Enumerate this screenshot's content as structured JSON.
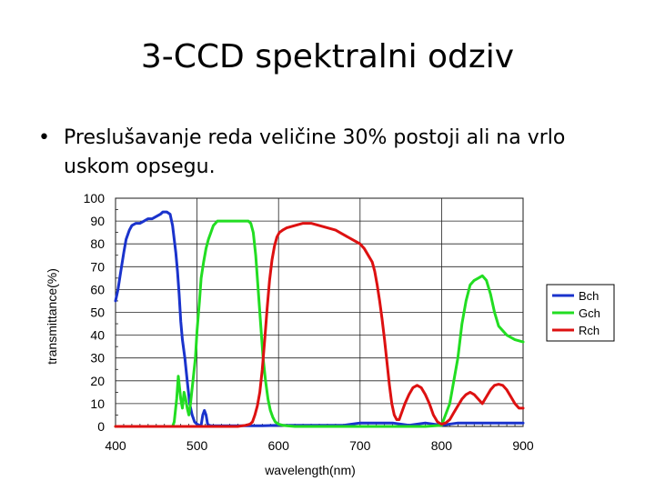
{
  "slide": {
    "title": "3-CCD spektralni odziv",
    "bullet_symbol": "•",
    "bullet_text": "Preslušavanje reda veličine 30% postoji ali na vrlo uskom opsegu."
  },
  "chart_data": {
    "type": "line",
    "xlabel": "wavelength(nm)",
    "ylabel": "transmittance(%)",
    "xlim": [
      400,
      900
    ],
    "ylim": [
      0,
      100
    ],
    "xticks": [
      400,
      500,
      600,
      700,
      800,
      900
    ],
    "yticks": [
      0,
      10,
      20,
      30,
      40,
      50,
      60,
      70,
      80,
      90,
      100
    ],
    "grid": true,
    "legend_position": "right",
    "series": [
      {
        "name": "Bch",
        "color": "#1a33cc",
        "x": [
          400,
          403,
          406,
          410,
          413,
          417,
          420,
          425,
          430,
          435,
          440,
          445,
          450,
          455,
          458,
          460,
          463,
          467,
          470,
          472,
          474,
          476,
          478,
          480,
          482,
          485,
          488,
          491,
          494,
          497,
          500,
          503,
          505,
          507,
          509,
          511,
          513,
          515,
          517,
          520,
          525,
          530,
          540,
          560,
          580,
          600,
          650,
          680,
          700,
          720,
          740,
          760,
          780,
          800,
          820,
          840,
          860,
          880,
          900
        ],
        "values": [
          55,
          60,
          67,
          76,
          82,
          86,
          88,
          89,
          89,
          90,
          91,
          91,
          92,
          93,
          94,
          94,
          94,
          93,
          88,
          82,
          76,
          68,
          58,
          46,
          38,
          30,
          20,
          10,
          5,
          2,
          1,
          0.5,
          0.5,
          5,
          7,
          5,
          1,
          0.5,
          0.3,
          0.3,
          0.3,
          0.3,
          0.3,
          0.3,
          0.3,
          0.5,
          0.5,
          0.5,
          1.5,
          1.5,
          1.5,
          0.5,
          1.5,
          0.5,
          1.5,
          1.5,
          1.5,
          1.5,
          1.5
        ]
      },
      {
        "name": "Gch",
        "color": "#22dd22",
        "x": [
          400,
          440,
          460,
          470,
          472,
          475,
          477,
          480,
          482,
          484,
          486,
          488,
          490,
          492,
          495,
          498,
          500,
          503,
          505,
          508,
          511,
          514,
          517,
          520,
          525,
          530,
          540,
          550,
          560,
          563,
          566,
          569,
          572,
          575,
          578,
          581,
          584,
          587,
          590,
          593,
          596,
          600,
          605,
          610,
          620,
          650,
          700,
          750,
          780,
          800,
          810,
          820,
          825,
          830,
          835,
          840,
          845,
          850,
          855,
          860,
          865,
          870,
          875,
          880,
          890,
          900
        ],
        "values": [
          0,
          0,
          0,
          0,
          2,
          12,
          22,
          12,
          8,
          15,
          12,
          8,
          5,
          10,
          20,
          30,
          42,
          55,
          65,
          72,
          78,
          82,
          85,
          88,
          90,
          90,
          90,
          90,
          90,
          90,
          89,
          85,
          75,
          60,
          45,
          30,
          20,
          12,
          7,
          4,
          2,
          1,
          0.5,
          0.3,
          0,
          0,
          0,
          0,
          0,
          0.5,
          10,
          30,
          45,
          55,
          62,
          64,
          65,
          66,
          64,
          58,
          50,
          44,
          42,
          40,
          38,
          37
        ]
      },
      {
        "name": "Rch",
        "color": "#dd1111",
        "x": [
          400,
          550,
          560,
          565,
          568,
          571,
          574,
          577,
          580,
          583,
          586,
          589,
          592,
          595,
          598,
          601,
          605,
          610,
          620,
          630,
          640,
          650,
          660,
          670,
          680,
          690,
          700,
          705,
          710,
          715,
          718,
          721,
          724,
          727,
          730,
          733,
          736,
          739,
          742,
          745,
          748,
          750,
          755,
          760,
          765,
          770,
          775,
          780,
          785,
          790,
          795,
          800,
          805,
          810,
          815,
          820,
          825,
          830,
          835,
          840,
          845,
          850,
          855,
          860,
          865,
          870,
          875,
          880,
          885,
          890,
          895,
          900
        ],
        "values": [
          0,
          0,
          0.5,
          1,
          2,
          5,
          9,
          15,
          25,
          38,
          52,
          64,
          73,
          79,
          83,
          85,
          86,
          87,
          88,
          89,
          89,
          88,
          87,
          86,
          84,
          82,
          80,
          78,
          75,
          72,
          68,
          62,
          55,
          47,
          38,
          28,
          18,
          10,
          5,
          3,
          3,
          5,
          10,
          14,
          17,
          18,
          17,
          14,
          10,
          5,
          2,
          1,
          1.5,
          3,
          6,
          9,
          12,
          14,
          15,
          14,
          12,
          10,
          13,
          16,
          18,
          18.5,
          18,
          16,
          13,
          10,
          8,
          8
        ]
      }
    ]
  }
}
